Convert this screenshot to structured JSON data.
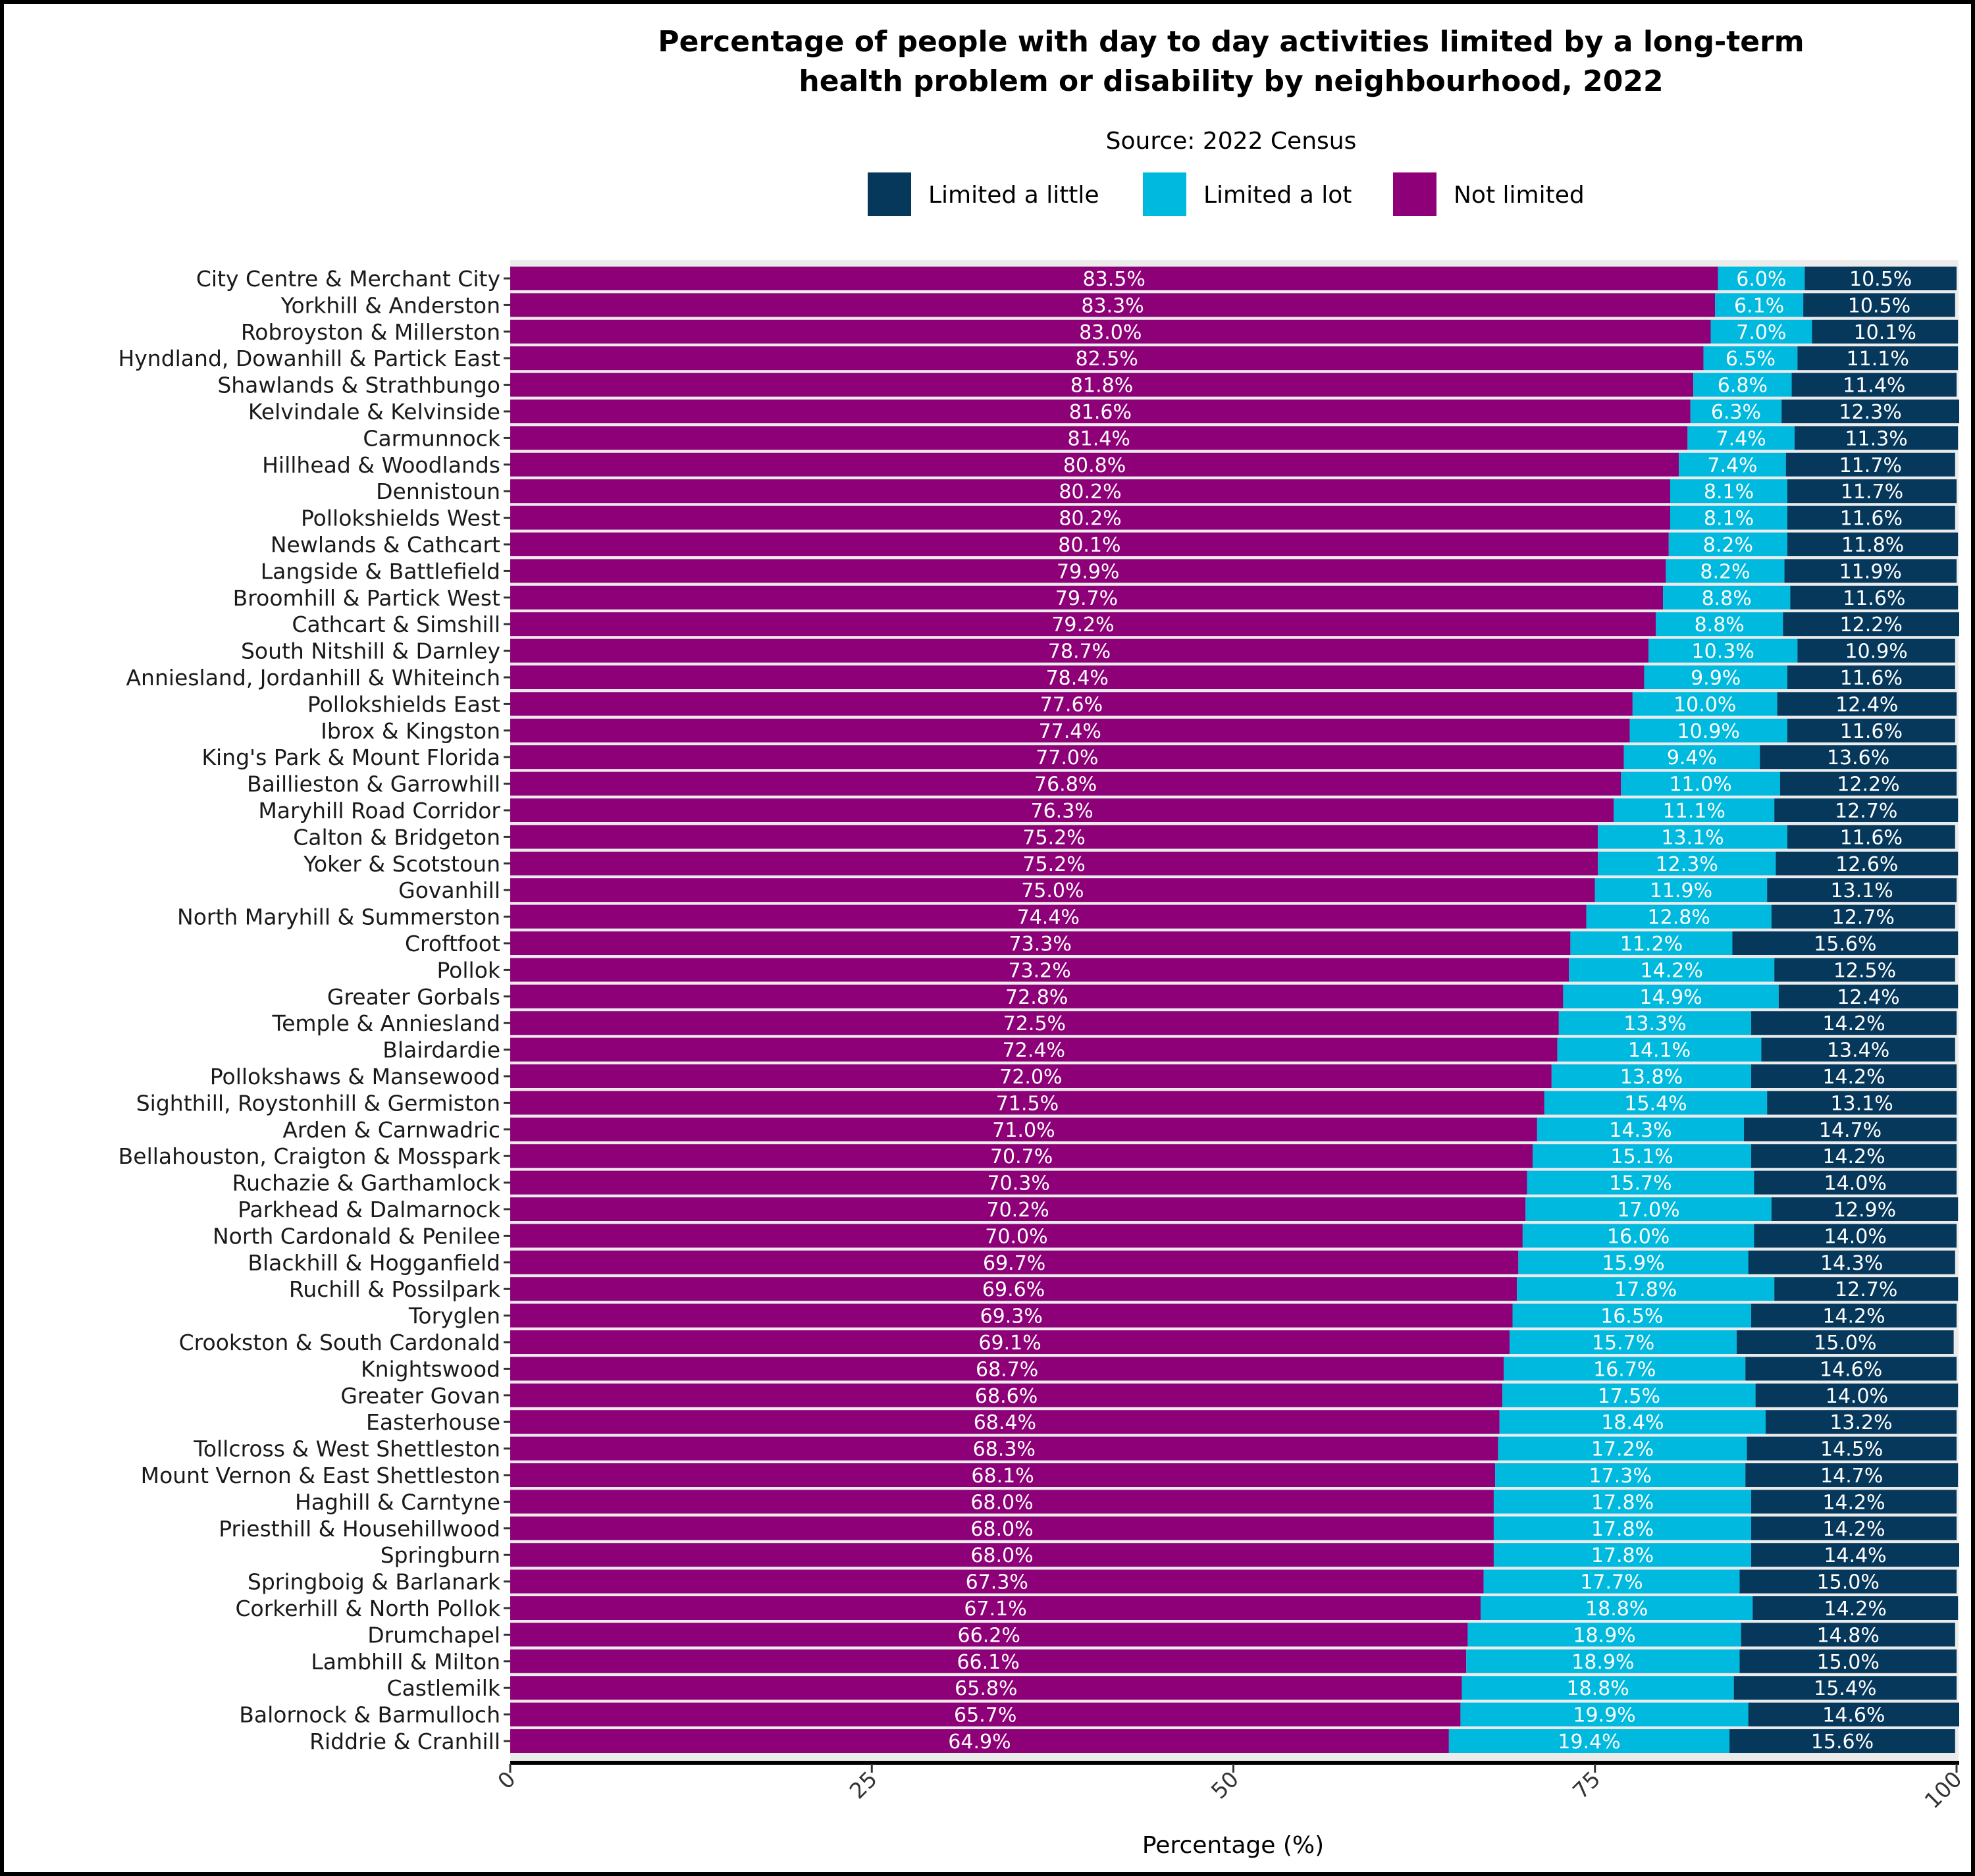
{
  "chart_data": {
    "type": "bar",
    "orientation": "horizontal",
    "stacked": true,
    "title": "Percentage of people with day to day activities limited by a long-term health problem or disability by neighbourhood, 2022",
    "title_lines": [
      "Percentage of people with day to day activities limited by a long-term",
      "health problem or disability by neighbourhood, 2022"
    ],
    "subtitle": "Source: 2022 Census",
    "xlabel": "Percentage (%)",
    "ylabel": "",
    "xlim": [
      0,
      100
    ],
    "xticks": [
      "0",
      "25",
      "50",
      "75",
      "100"
    ],
    "legend_position": "top",
    "legend": [
      "Limited a little",
      "Limited a lot",
      "Not limited"
    ],
    "colors": {
      "Not limited": "#8e0077",
      "Limited a lot": "#00b9de",
      "Limited a little": "#06385c"
    },
    "categories": [
      "City Centre & Merchant City",
      "Yorkhill & Anderston",
      "Robroyston & Millerston",
      "Hyndland, Dowanhill & Partick East",
      "Shawlands & Strathbungo",
      "Kelvindale & Kelvinside",
      "Carmunnock",
      "Hillhead & Woodlands",
      "Dennistoun",
      "Pollokshields West",
      "Newlands & Cathcart",
      "Langside & Battlefield",
      "Broomhill & Partick West",
      "Cathcart & Simshill",
      "South Nitshill & Darnley",
      "Anniesland, Jordanhill & Whiteinch",
      "Pollokshields East",
      "Ibrox & Kingston",
      "King's Park & Mount Florida",
      "Baillieston & Garrowhill",
      "Maryhill Road Corridor",
      "Calton & Bridgeton",
      "Yoker & Scotstoun",
      "Govanhill",
      "North Maryhill & Summerston",
      "Croftfoot",
      "Pollok",
      "Greater Gorbals",
      "Temple & Anniesland",
      "Blairdardie",
      "Pollokshaws & Mansewood",
      "Sighthill, Roystonhill & Germiston",
      "Arden & Carnwadric",
      "Bellahouston, Craigton & Mosspark",
      "Ruchazie & Garthamlock",
      "Parkhead & Dalmarnock",
      "North Cardonald & Penilee",
      "Blackhill & Hogganfield",
      "Ruchill & Possilpark",
      "Toryglen",
      "Crookston & South Cardonald",
      "Knightswood",
      "Greater Govan",
      "Easterhouse",
      "Tollcross & West Shettleston",
      "Mount Vernon & East Shettleston",
      "Haghill & Carntyne",
      "Priesthill & Househillwood",
      "Springburn",
      "Springboig & Barlanark",
      "Corkerhill & North Pollok",
      "Drumchapel",
      "Lambhill & Milton",
      "Castlemilk",
      "Balornock & Barmulloch",
      "Riddrie & Cranhill"
    ],
    "series": [
      {
        "name": "Not limited",
        "values": [
          83.5,
          83.3,
          83.0,
          82.5,
          81.8,
          81.6,
          81.4,
          80.8,
          80.2,
          80.2,
          80.1,
          79.9,
          79.7,
          79.2,
          78.7,
          78.4,
          77.6,
          77.4,
          77.0,
          76.8,
          76.3,
          75.2,
          75.2,
          75.0,
          74.4,
          73.3,
          73.2,
          72.8,
          72.5,
          72.4,
          72.0,
          71.5,
          71.0,
          70.7,
          70.3,
          70.2,
          70.0,
          69.7,
          69.6,
          69.3,
          69.1,
          68.7,
          68.6,
          68.4,
          68.3,
          68.1,
          68.0,
          68.0,
          68.0,
          67.3,
          67.1,
          66.2,
          66.1,
          65.8,
          65.7,
          64.9
        ]
      },
      {
        "name": "Limited a lot",
        "values": [
          6.0,
          6.1,
          7.0,
          6.5,
          6.8,
          6.3,
          7.4,
          7.4,
          8.1,
          8.1,
          8.2,
          8.2,
          8.8,
          8.8,
          10.3,
          9.9,
          10.0,
          10.9,
          9.4,
          11.0,
          11.1,
          13.1,
          12.3,
          11.9,
          12.8,
          11.2,
          14.2,
          14.9,
          13.3,
          14.1,
          13.8,
          15.4,
          14.3,
          15.1,
          15.7,
          17.0,
          16.0,
          15.9,
          17.8,
          16.5,
          15.7,
          16.7,
          17.5,
          18.4,
          17.2,
          17.3,
          17.8,
          17.8,
          17.8,
          17.7,
          18.8,
          18.9,
          18.9,
          18.8,
          19.9,
          19.4
        ]
      },
      {
        "name": "Limited a little",
        "values": [
          10.5,
          10.5,
          10.1,
          11.1,
          11.4,
          12.3,
          11.3,
          11.7,
          11.7,
          11.6,
          11.8,
          11.9,
          11.6,
          12.2,
          10.9,
          11.6,
          12.4,
          11.6,
          13.6,
          12.2,
          12.7,
          11.6,
          12.6,
          13.1,
          12.7,
          15.6,
          12.5,
          12.4,
          14.2,
          13.4,
          14.2,
          13.1,
          14.7,
          14.2,
          14.0,
          12.9,
          14.0,
          14.3,
          12.7,
          14.2,
          15.0,
          14.6,
          14.0,
          13.2,
          14.5,
          14.7,
          14.2,
          14.2,
          14.4,
          15.0,
          14.2,
          14.8,
          15.0,
          15.4,
          14.6,
          15.6
        ]
      }
    ]
  }
}
